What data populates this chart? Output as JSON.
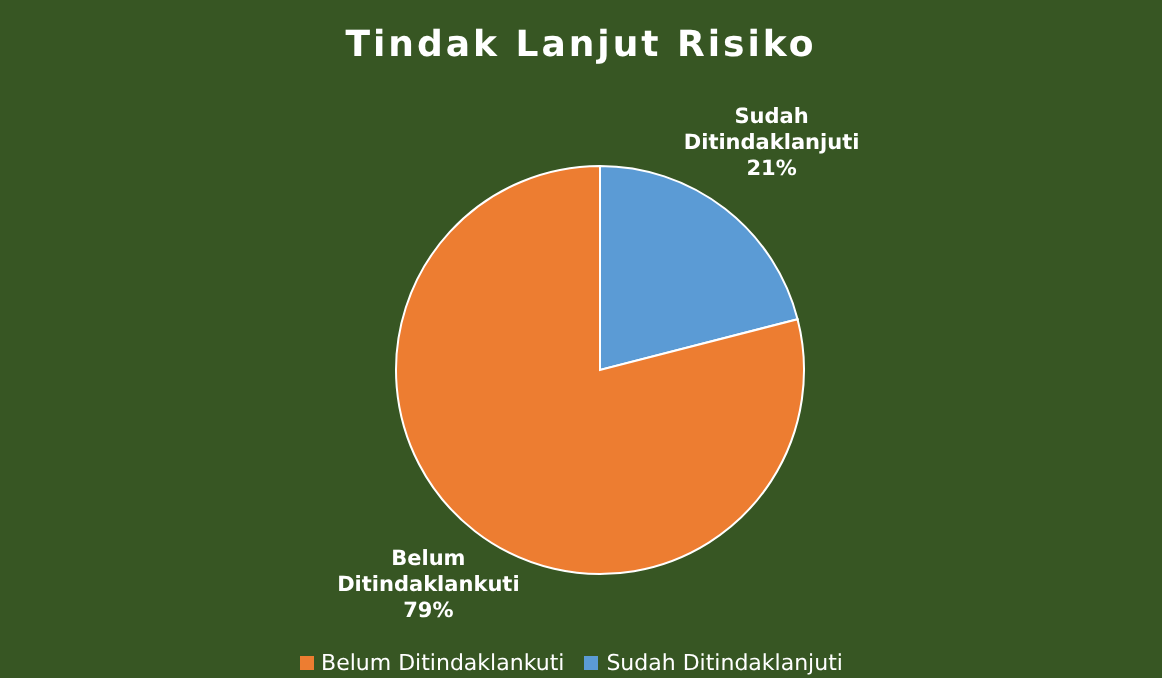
{
  "chart_data": {
    "type": "pie",
    "title": "Tindak Lanjut Risiko",
    "categories": [
      "Sudah Ditindaklanjuti",
      "Belum Ditindaklankuti"
    ],
    "values": [
      21,
      79
    ],
    "colors": [
      "#5b9bd5",
      "#ed7d31"
    ],
    "value_labels": [
      "21%",
      "79%"
    ],
    "legend": "bottom"
  }
}
